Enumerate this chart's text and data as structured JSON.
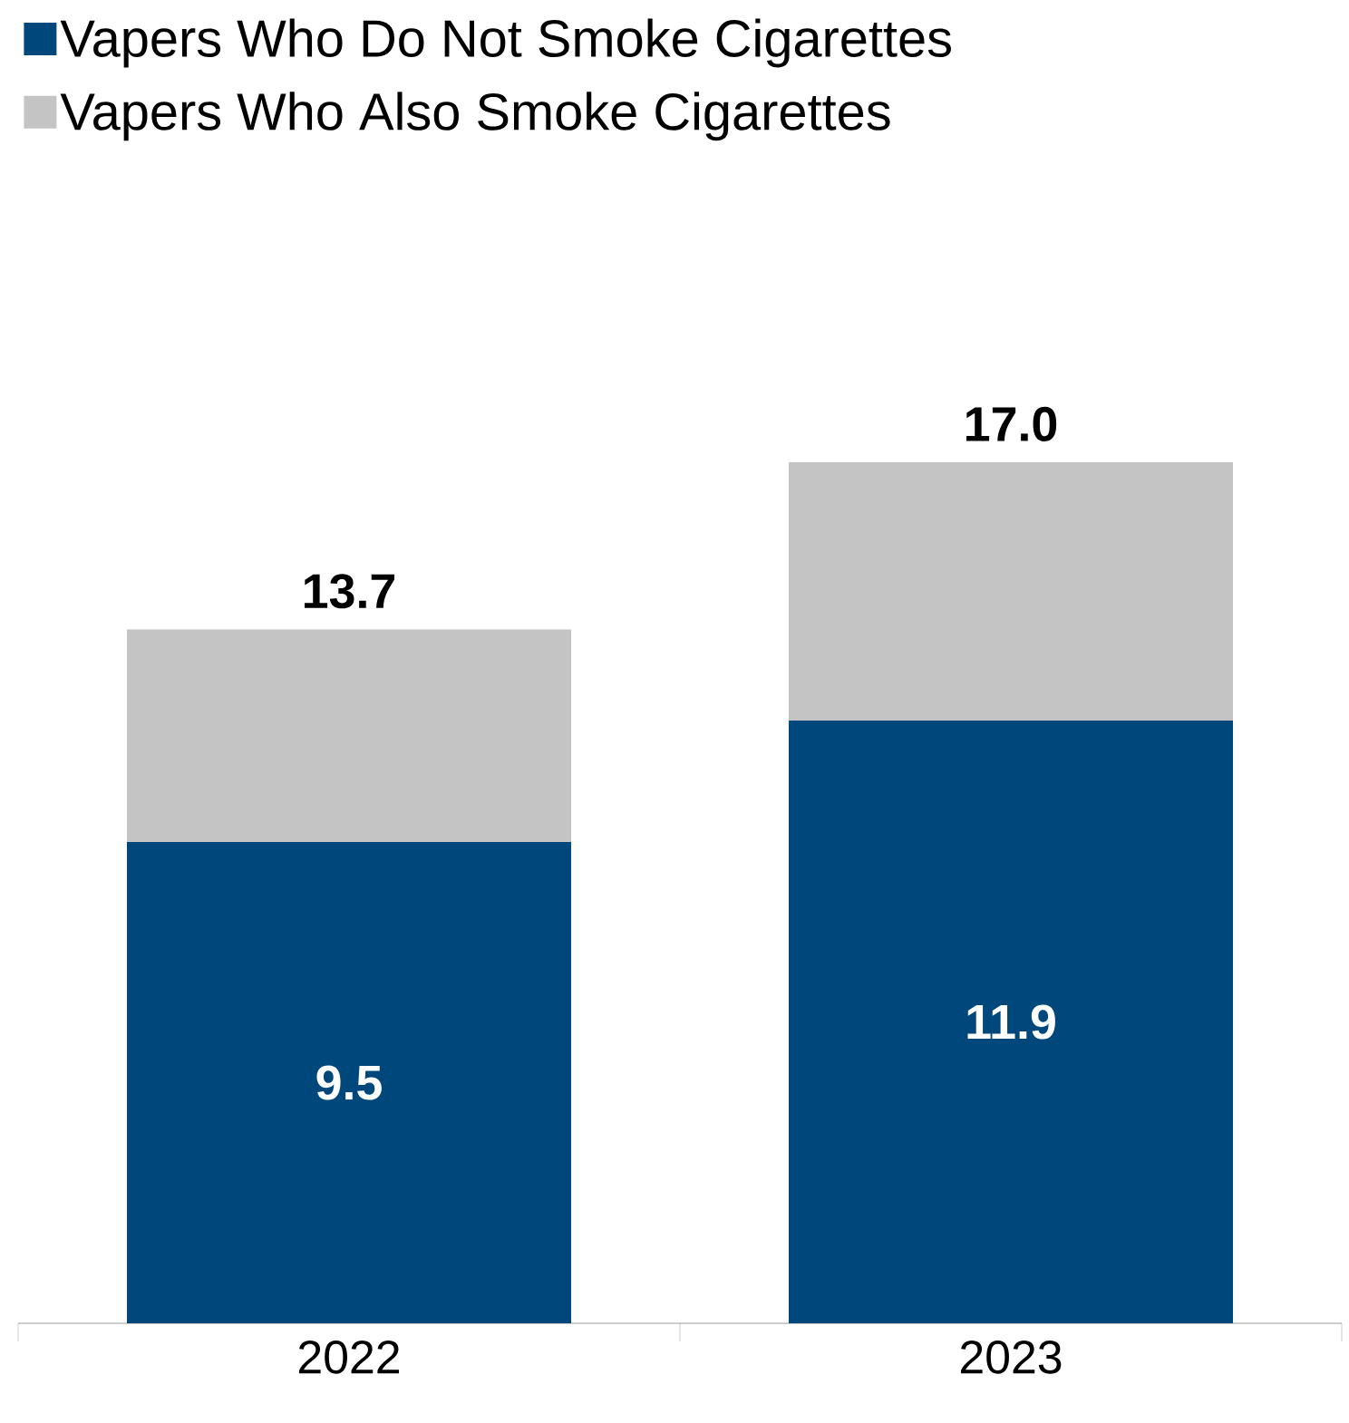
{
  "chart_data": {
    "type": "bar",
    "stacked": true,
    "categories": [
      "2022",
      "2023"
    ],
    "series": [
      {
        "name": "Vapers Who Do Not Smoke Cigarettes",
        "color": "#00487c",
        "values": [
          9.5,
          11.9
        ],
        "value_labels": [
          "9.5",
          "11.9"
        ]
      },
      {
        "name": "Vapers Who Also Smoke Cigarettes",
        "color": "#c4c4c4",
        "values": [
          4.2,
          5.1
        ]
      }
    ],
    "totals": [
      "13.7",
      "17.0"
    ],
    "tick_labels": "x",
    "legend": "top left",
    "grid": false
  }
}
